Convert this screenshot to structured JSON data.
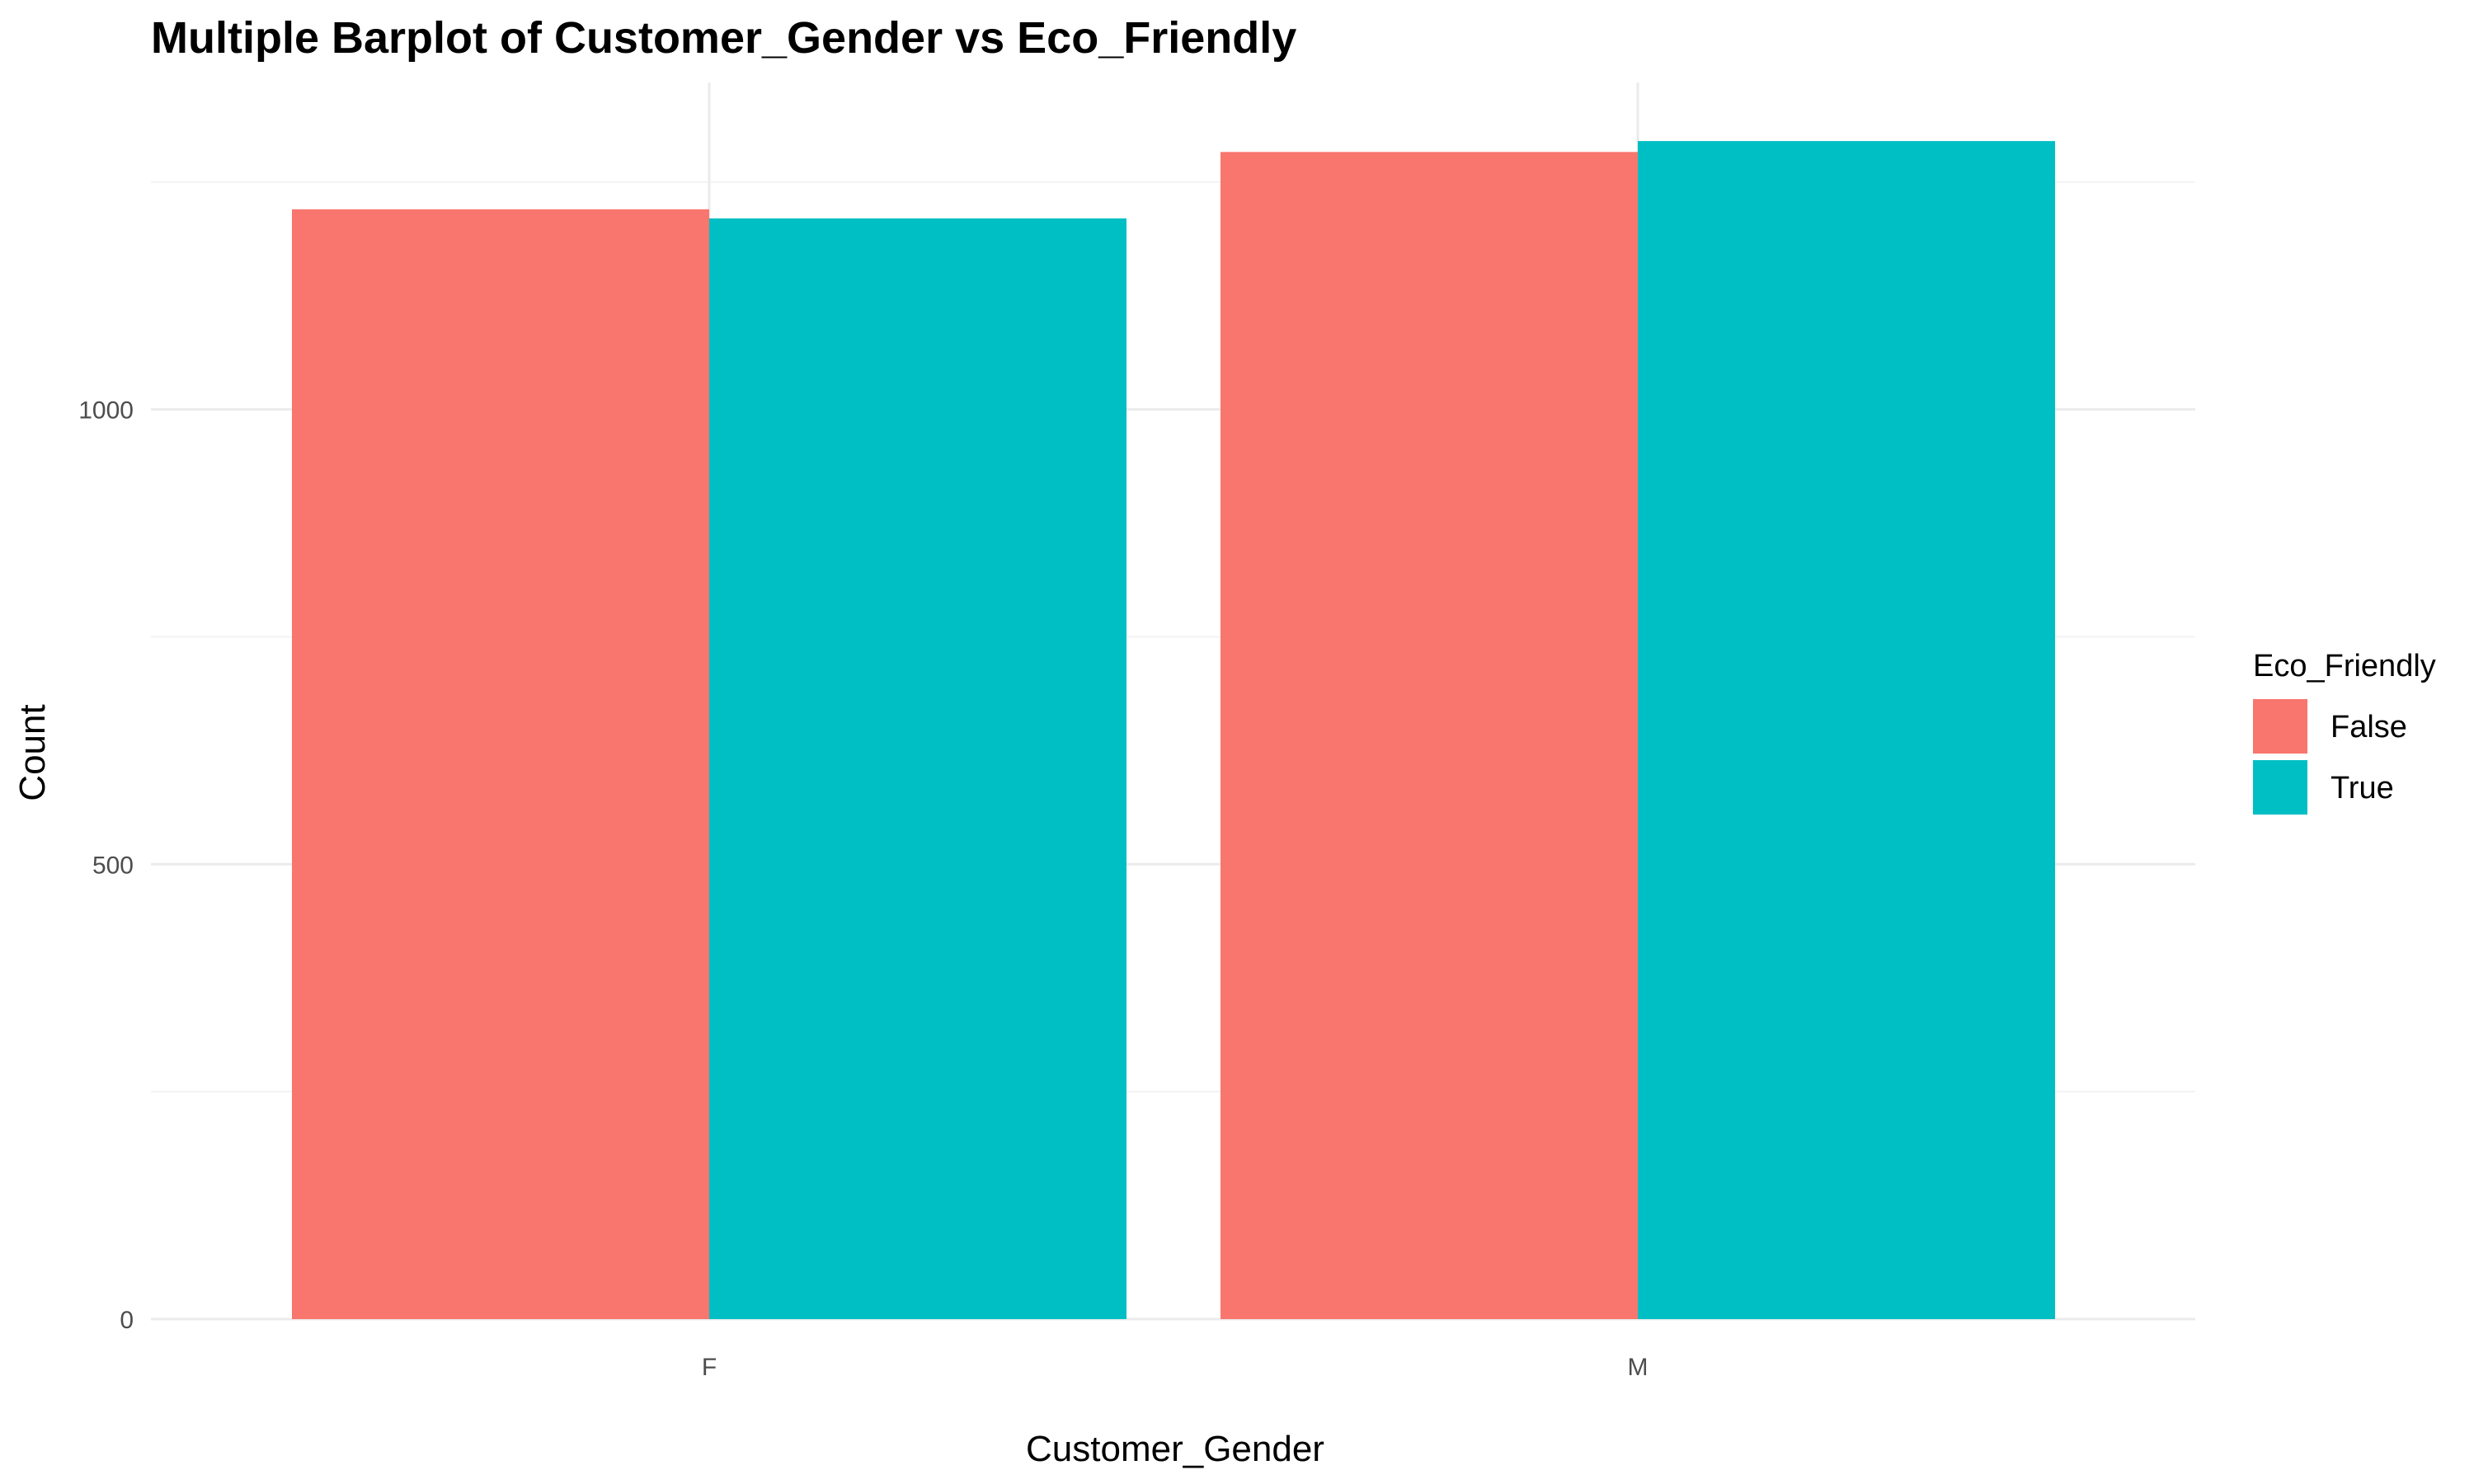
{
  "chart_data": {
    "type": "bar",
    "title": "Multiple Barplot of Customer_Gender vs Eco_Friendly",
    "xlabel": "Customer_Gender",
    "ylabel": "Count",
    "categories": [
      "F",
      "M"
    ],
    "series": [
      {
        "name": "False",
        "values": [
          1220,
          1283
        ],
        "color": "#F8766D"
      },
      {
        "name": "True",
        "values": [
          1210,
          1295
        ],
        "color": "#00BFC4"
      }
    ],
    "ylim": [
      0,
      1400
    ],
    "yticks": [
      0,
      500,
      1000
    ],
    "grid": true,
    "legend": {
      "title": "Eco_Friendly",
      "position": "right"
    }
  }
}
